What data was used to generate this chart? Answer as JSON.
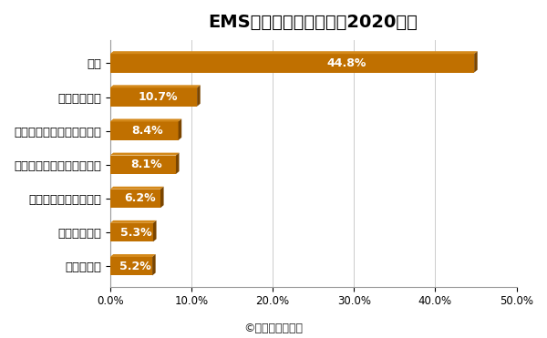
{
  "title": "EMS業界の世界シェア（2020年）",
  "categories": [
    "フレックス",
    "ウィストロン",
    "ジェイビルサーキット",
    "コンパルエレクトロニクス",
    "クアンタ･コンピューター",
    "ペガストロン",
    "鴻海"
  ],
  "values": [
    5.2,
    5.3,
    6.2,
    8.1,
    8.4,
    10.7,
    44.8
  ],
  "bar_color_main": "#C07000",
  "bar_color_dark": "#7A4500",
  "bar_color_top": "#D4891A",
  "xlim": [
    0,
    50
  ],
  "xtick_labels": [
    "0.0%",
    "10.0%",
    "20.0%",
    "30.0%",
    "40.0%",
    "50.0%"
  ],
  "value_label_color": "#FFFFFF",
  "footnote": "©業界再編の動向",
  "background_color": "#FFFFFF",
  "title_fontsize": 14,
  "label_fontsize": 9.5,
  "value_fontsize": 9,
  "footnote_fontsize": 9
}
